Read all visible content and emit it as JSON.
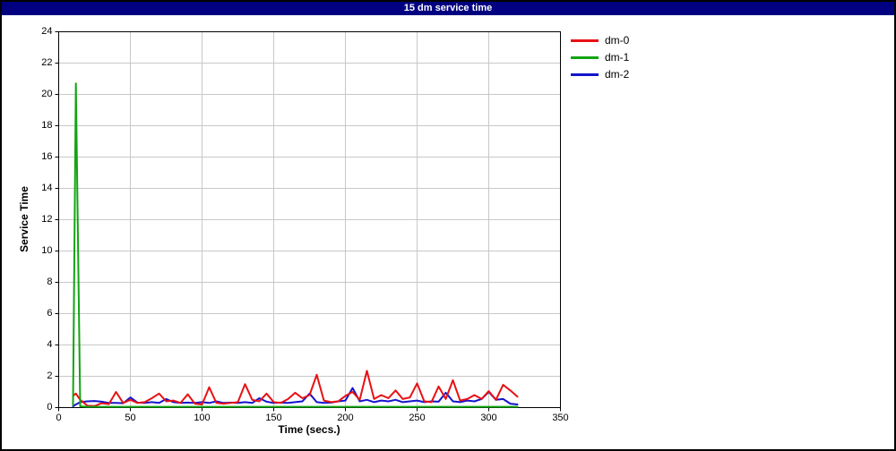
{
  "window": {
    "title": "15 dm service time"
  },
  "colors": {
    "titlebar_bg": "#000080",
    "titlebar_text": "#ffffff",
    "plot_bg": "#ffffff",
    "grid": "#c8c8c8",
    "axis": "#000000",
    "dm0": "#e81114",
    "dm1": "#12a412",
    "dm2": "#1515cc"
  },
  "chart_data": {
    "type": "line",
    "title": "15 dm service time",
    "xlabel": "Time (secs.)",
    "ylabel": "Service Time",
    "xlim": [
      0,
      350
    ],
    "ylim": [
      0,
      24
    ],
    "xticks": [
      0,
      50,
      100,
      150,
      200,
      250,
      300,
      350
    ],
    "yticks": [
      0,
      2,
      4,
      6,
      8,
      10,
      12,
      14,
      16,
      18,
      20,
      22,
      24
    ],
    "grid": true,
    "legend_position": "right",
    "x": [
      10,
      12,
      15,
      20,
      25,
      30,
      35,
      40,
      45,
      50,
      55,
      60,
      65,
      70,
      75,
      80,
      85,
      90,
      95,
      100,
      105,
      110,
      115,
      120,
      125,
      130,
      135,
      140,
      145,
      150,
      155,
      160,
      165,
      170,
      175,
      180,
      185,
      190,
      195,
      200,
      205,
      210,
      215,
      220,
      225,
      230,
      235,
      240,
      245,
      250,
      255,
      260,
      265,
      270,
      275,
      280,
      285,
      290,
      295,
      300,
      305,
      310,
      315,
      320
    ],
    "series": [
      {
        "name": "dm-0",
        "color": "#e81114",
        "values": [
          0.75,
          0.9,
          0.5,
          0.12,
          0.1,
          0.28,
          0.22,
          1.0,
          0.3,
          0.5,
          0.3,
          0.35,
          0.6,
          0.9,
          0.4,
          0.45,
          0.3,
          0.85,
          0.25,
          0.2,
          1.3,
          0.3,
          0.25,
          0.3,
          0.35,
          1.5,
          0.5,
          0.4,
          0.9,
          0.35,
          0.3,
          0.55,
          0.95,
          0.6,
          0.8,
          2.1,
          0.45,
          0.35,
          0.4,
          0.75,
          1.0,
          0.5,
          2.35,
          0.55,
          0.8,
          0.6,
          1.1,
          0.55,
          0.65,
          1.55,
          0.4,
          0.35,
          1.35,
          0.55,
          1.75,
          0.45,
          0.55,
          0.8,
          0.55,
          1.05,
          0.5,
          1.45,
          1.1,
          0.7
        ]
      },
      {
        "name": "dm-1",
        "color": "#12a412",
        "values": [
          0.15,
          20.7,
          0.08,
          0.05,
          0.05,
          0.05,
          0.05,
          0.05,
          0.05,
          0.05,
          0.05,
          0.05,
          0.05,
          0.05,
          0.05,
          0.05,
          0.05,
          0.05,
          0.05,
          0.05,
          0.05,
          0.05,
          0.05,
          0.05,
          0.05,
          0.05,
          0.05,
          0.05,
          0.05,
          0.05,
          0.05,
          0.05,
          0.05,
          0.05,
          0.05,
          0.05,
          0.05,
          0.05,
          0.05,
          0.05,
          0.05,
          0.05,
          0.05,
          0.05,
          0.05,
          0.05,
          0.05,
          0.05,
          0.05,
          0.05,
          0.05,
          0.05,
          0.05,
          0.05,
          0.05,
          0.05,
          0.05,
          0.05,
          0.05,
          0.05,
          0.05,
          0.05,
          0.05,
          0.05
        ]
      },
      {
        "name": "dm-2",
        "color": "#1515cc",
        "values": [
          0.08,
          0.2,
          0.35,
          0.4,
          0.42,
          0.38,
          0.3,
          0.3,
          0.28,
          0.65,
          0.32,
          0.3,
          0.35,
          0.3,
          0.55,
          0.35,
          0.3,
          0.32,
          0.3,
          0.35,
          0.3,
          0.4,
          0.3,
          0.32,
          0.3,
          0.35,
          0.3,
          0.6,
          0.38,
          0.3,
          0.32,
          0.3,
          0.35,
          0.4,
          0.9,
          0.35,
          0.3,
          0.32,
          0.4,
          0.45,
          1.25,
          0.4,
          0.5,
          0.35,
          0.45,
          0.4,
          0.5,
          0.35,
          0.4,
          0.45,
          0.35,
          0.4,
          0.38,
          0.95,
          0.4,
          0.35,
          0.45,
          0.4,
          0.55,
          1.0,
          0.5,
          0.55,
          0.25,
          0.2
        ]
      }
    ]
  }
}
